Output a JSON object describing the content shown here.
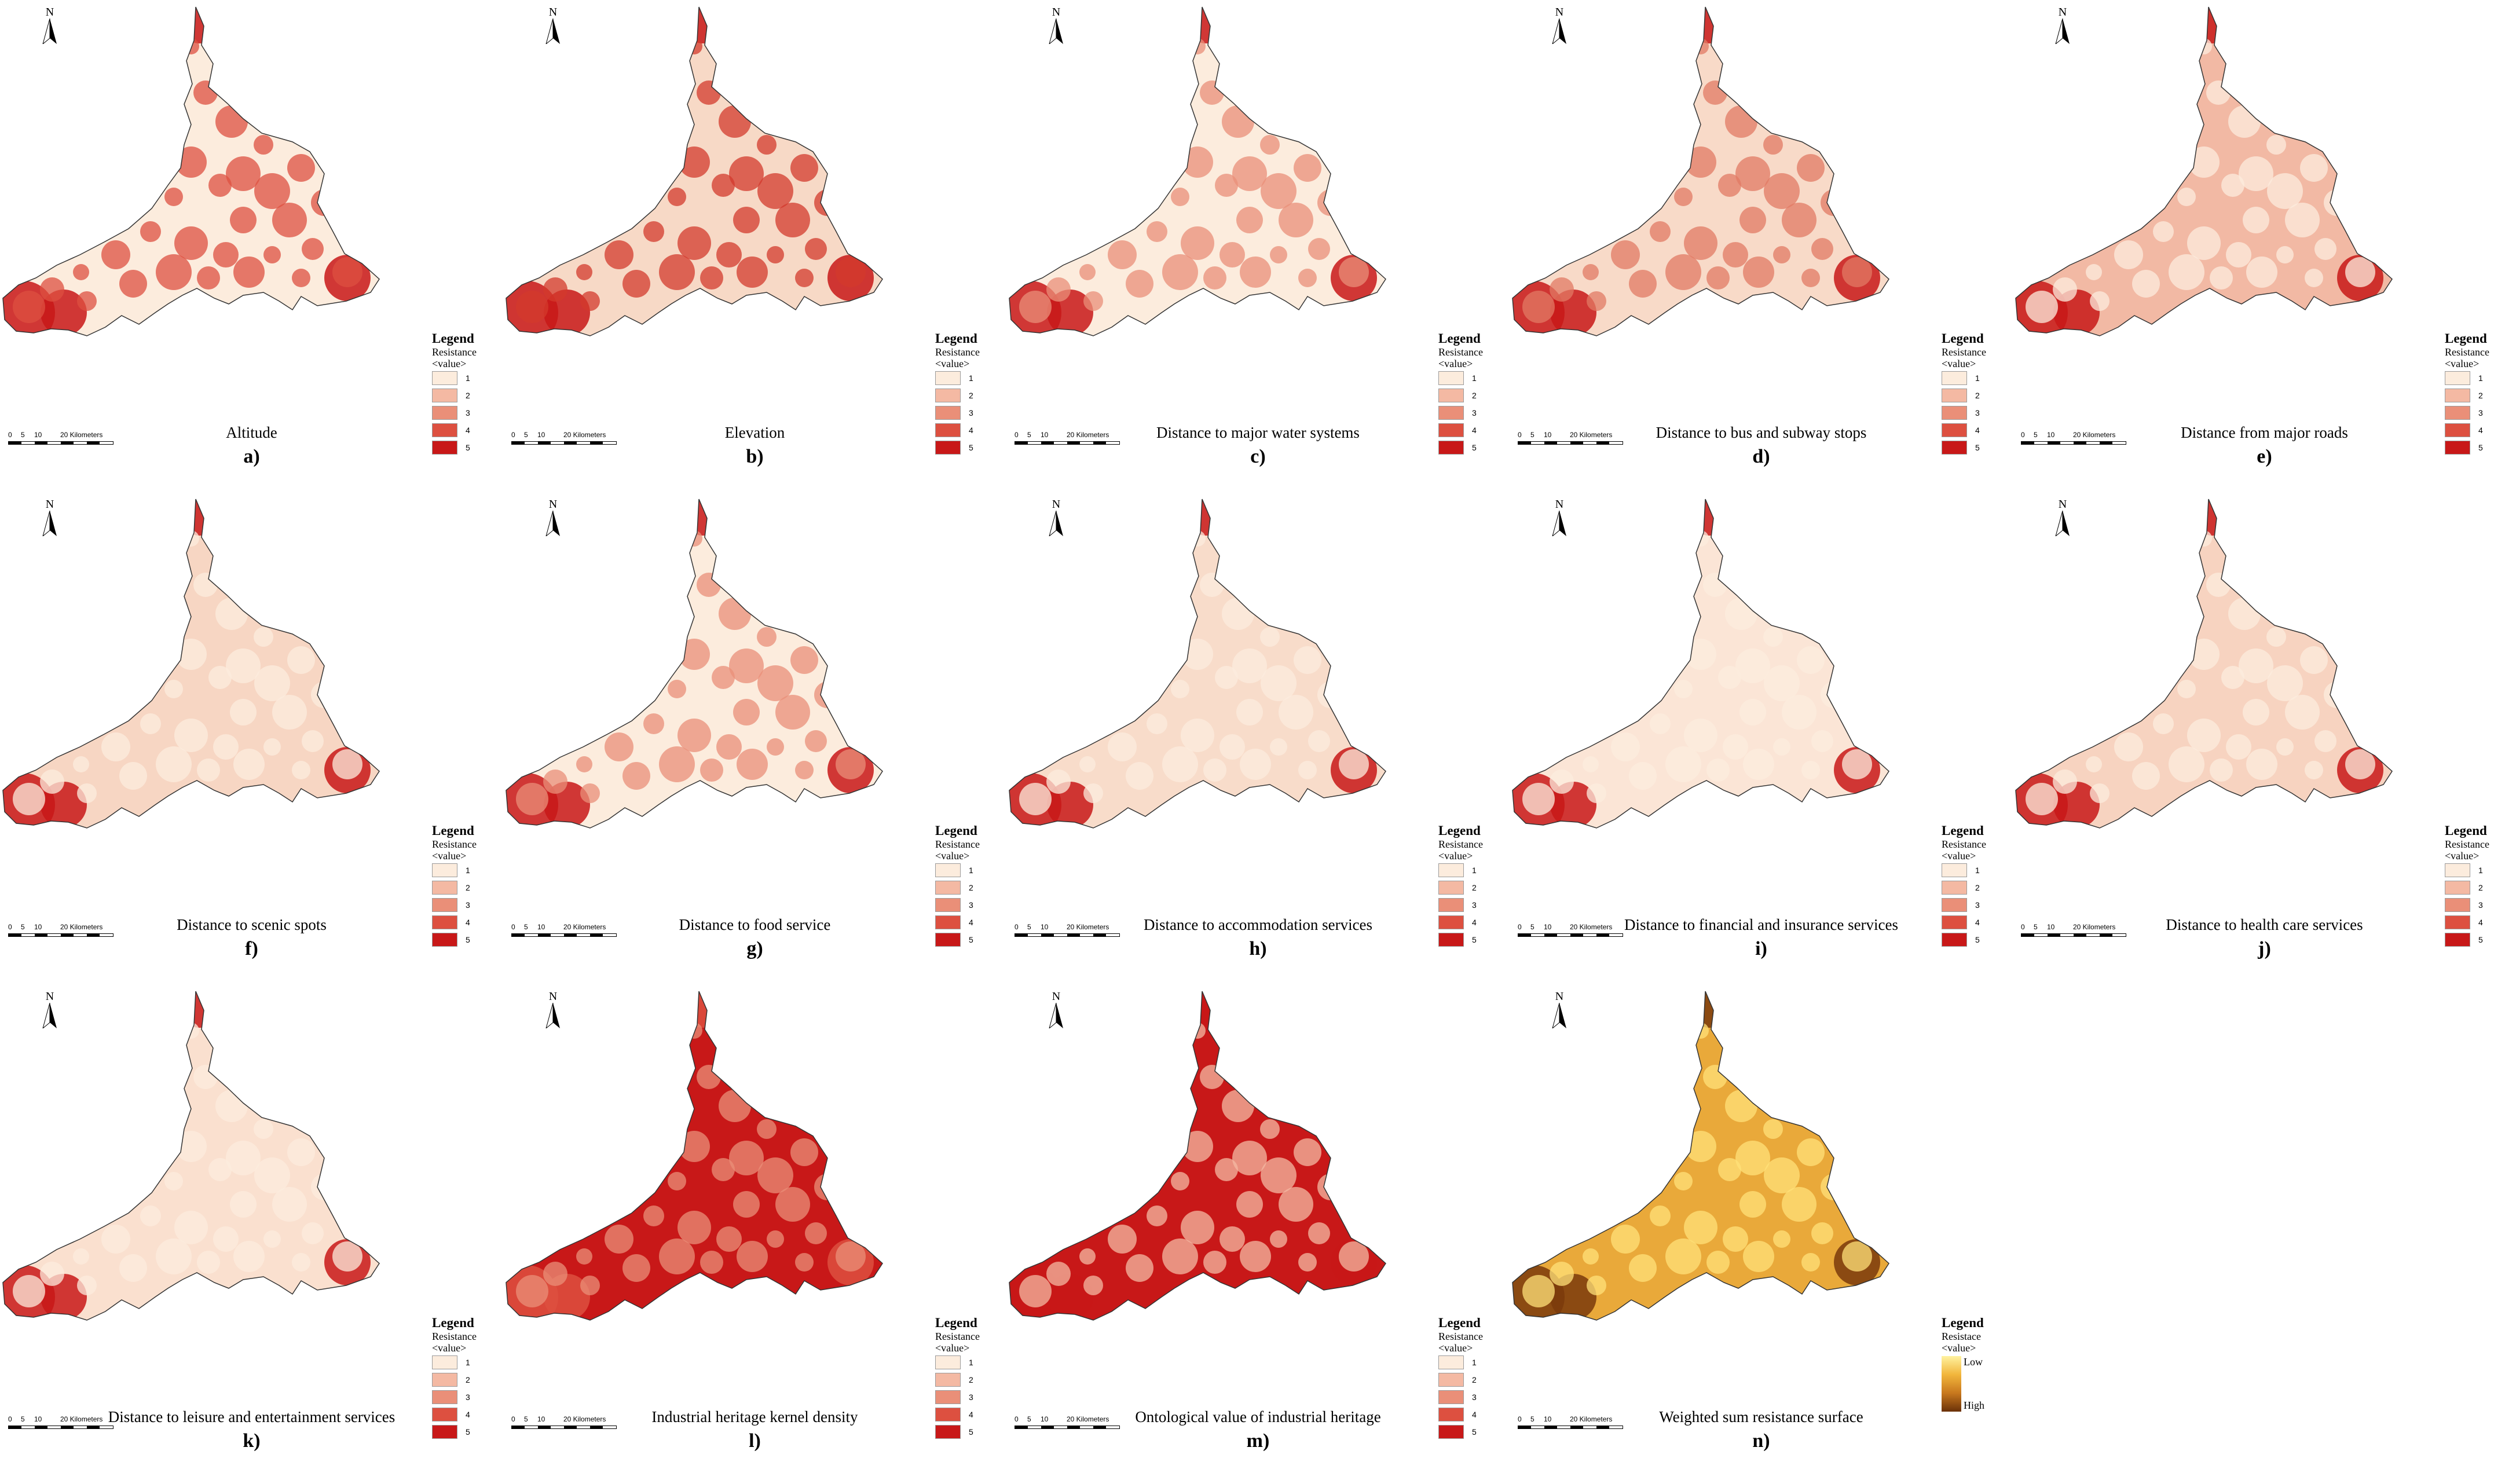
{
  "north_label": "N",
  "legend": {
    "title": "Legend",
    "subtitle_line1": "Resistance",
    "subtitle_line2": "<value>",
    "classes": [
      "1",
      "2",
      "3",
      "4",
      "5"
    ],
    "class_colors": [
      "#fcecdd",
      "#f4b9a3",
      "#ea8f78",
      "#dd5040",
      "#c81818"
    ],
    "continuous_title": "Resistace",
    "continuous_low": "Low",
    "continuous_high": "High"
  },
  "scalebar": {
    "ticks": [
      "0",
      "5",
      "10",
      "20 Kilometers"
    ]
  },
  "panels": [
    {
      "letter": "a)",
      "caption": "Altitude",
      "legend_type": "classes",
      "colors": {
        "base": "#fcecdd",
        "spots": "#dd5040",
        "accent": "#c81818"
      }
    },
    {
      "letter": "b)",
      "caption": "Elevation",
      "legend_type": "classes",
      "colors": {
        "base": "#f7d9c6",
        "spots": "#d33a2c",
        "accent": "#c81818"
      }
    },
    {
      "letter": "c)",
      "caption": "Distance to major water systems",
      "legend_type": "classes",
      "colors": {
        "base": "#fcecdd",
        "spots": "#ea8f78",
        "accent": "#c81818"
      }
    },
    {
      "letter": "d)",
      "caption": "Distance to bus and subway stops",
      "legend_type": "classes",
      "colors": {
        "base": "#f8dac8",
        "spots": "#e27a64",
        "accent": "#c81818"
      }
    },
    {
      "letter": "e)",
      "caption": "Distance from major roads",
      "legend_type": "classes",
      "colors": {
        "base": "#f2b9a4",
        "spots": "#fcecdd",
        "accent": "#c81818"
      }
    },
    {
      "letter": "f)",
      "caption": "Distance to scenic spots",
      "legend_type": "classes",
      "colors": {
        "base": "#f7d6c3",
        "spots": "#fcecdd",
        "accent": "#c81818"
      }
    },
    {
      "letter": "g)",
      "caption": "Distance to food service",
      "legend_type": "classes",
      "colors": {
        "base": "#fcecdd",
        "spots": "#ea8f78",
        "accent": "#c81818"
      }
    },
    {
      "letter": "h)",
      "caption": "Distance to accommodation services",
      "legend_type": "classes",
      "colors": {
        "base": "#f8dcca",
        "spots": "#fcecdd",
        "accent": "#c81818"
      }
    },
    {
      "letter": "i)",
      "caption": "Distance to financial and insurance services",
      "legend_type": "classes",
      "colors": {
        "base": "#fbe5d6",
        "spots": "#fcecdd",
        "accent": "#c81818"
      }
    },
    {
      "letter": "j)",
      "caption": "Distance to health care services",
      "legend_type": "classes",
      "colors": {
        "base": "#f7d3c0",
        "spots": "#fcecdd",
        "accent": "#c81818"
      }
    },
    {
      "letter": "k)",
      "caption": "Distance to leisure and entertainment services",
      "legend_type": "classes",
      "colors": {
        "base": "#fae0cf",
        "spots": "#fcecdd",
        "accent": "#c81818"
      }
    },
    {
      "letter": "l)",
      "caption": "Industrial heritage kernel density",
      "legend_type": "classes",
      "colors": {
        "base": "#c81818",
        "spots": "#ea8f78",
        "accent": "#dd5040"
      }
    },
    {
      "letter": "m)",
      "caption": "Ontological value of industrial heritage",
      "legend_type": "classes",
      "colors": {
        "base": "#c81818",
        "spots": "#f4b9a3",
        "accent": "#c81818"
      }
    },
    {
      "letter": "n)",
      "caption": "Weighted sum resistance surface",
      "legend_type": "gradient",
      "colors": {
        "base": "#e9a93a",
        "spots": "#ffe27a",
        "accent": "#7a3a0c"
      }
    }
  ]
}
